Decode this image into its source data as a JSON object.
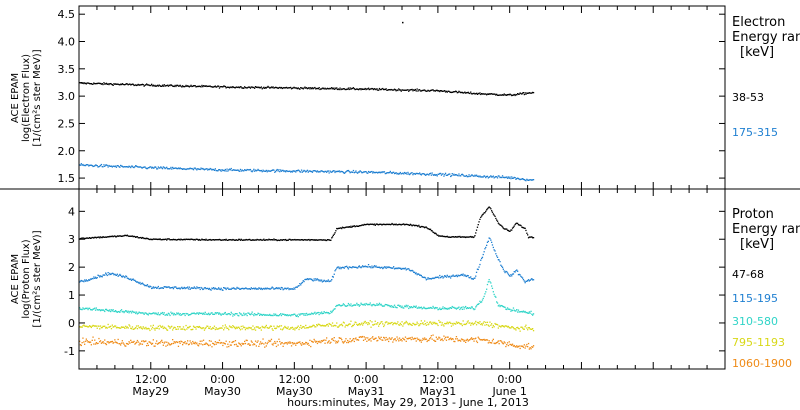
{
  "chart_data": {
    "type": "scatter",
    "x_axis": {
      "label": "hours:minutes, May 29, 2013 - June  1, 2013",
      "range_hours": [
        0,
        108
      ],
      "ticks": [
        {
          "hour": 12,
          "time": "12:00",
          "date": "May29"
        },
        {
          "hour": 24,
          "time": "0:00",
          "date": "May30"
        },
        {
          "hour": 36,
          "time": "12:00",
          "date": "May30"
        },
        {
          "hour": 48,
          "time": "0:00",
          "date": "May31"
        },
        {
          "hour": 60,
          "time": "12:00",
          "date": "May31"
        },
        {
          "hour": 72,
          "time": "0:00",
          "date": "June 1"
        }
      ]
    },
    "panels": [
      {
        "id": "electron",
        "ylabel_lines": [
          "ACE EPAM",
          "log(Electron Flux)",
          "[1/(cm²s ster MeV)]"
        ],
        "ylim": [
          1.3,
          4.65
        ],
        "yticks": [
          {
            "v": 1.5,
            "label": "1.5"
          },
          {
            "v": 2.0,
            "label": "2.0"
          },
          {
            "v": 2.5,
            "label": "2.5"
          },
          {
            "v": 3.0,
            "label": "3.0"
          },
          {
            "v": 3.5,
            "label": "3.5"
          },
          {
            "v": 4.0,
            "label": "4.0"
          },
          {
            "v": 4.5,
            "label": "4.5"
          }
        ],
        "legend_title_lines": [
          "Electron",
          "Energy ranges"
        ],
        "legend_unit": "[keV]",
        "series": [
          {
            "name": "38-53",
            "color": "#000000",
            "noise": 0.03,
            "points": [
              [
                0,
                3.25
              ],
              [
                12,
                3.21
              ],
              [
                24,
                3.18
              ],
              [
                36,
                3.16
              ],
              [
                48,
                3.14
              ],
              [
                60,
                3.11
              ],
              [
                66,
                3.06
              ],
              [
                72,
                3.03
              ],
              [
                76,
                3.08
              ]
            ]
          },
          {
            "name": "175-315",
            "color": "#1e7fd1",
            "noise": 0.04,
            "points": [
              [
                0,
                1.75
              ],
              [
                12,
                1.7
              ],
              [
                24,
                1.66
              ],
              [
                36,
                1.64
              ],
              [
                48,
                1.62
              ],
              [
                60,
                1.58
              ],
              [
                72,
                1.52
              ],
              [
                76,
                1.47
              ]
            ]
          }
        ],
        "outliers": [
          [
            54,
            4.36
          ]
        ]
      },
      {
        "id": "proton",
        "ylabel_lines": [
          "ACE EPAM",
          "log(Proton Flux)",
          "[1/(cm²s ster MeV)]"
        ],
        "ylim": [
          -1.65,
          4.8
        ],
        "yticks": [
          {
            "v": -1,
            "label": "-1"
          },
          {
            "v": 0,
            "label": "0"
          },
          {
            "v": 1,
            "label": "1"
          },
          {
            "v": 2,
            "label": "2"
          },
          {
            "v": 3,
            "label": "3"
          },
          {
            "v": 4,
            "label": "4"
          }
        ],
        "legend_title_lines": [
          "Proton",
          "Energy ranges"
        ],
        "legend_unit": "[keV]",
        "series": [
          {
            "name": "47-68",
            "color": "#000000",
            "noise": 0.04,
            "points": [
              [
                0,
                3.05
              ],
              [
                8,
                3.15
              ],
              [
                12,
                3.02
              ],
              [
                24,
                3.0
              ],
              [
                36,
                3.0
              ],
              [
                42,
                3.0
              ],
              [
                43,
                3.4
              ],
              [
                48,
                3.55
              ],
              [
                55,
                3.55
              ],
              [
                58,
                3.45
              ],
              [
                60,
                3.15
              ],
              [
                62,
                3.1
              ],
              [
                64,
                3.1
              ],
              [
                66,
                3.1
              ],
              [
                67,
                3.8
              ],
              [
                68.5,
                4.2
              ],
              [
                70,
                3.6
              ],
              [
                71,
                3.4
              ],
              [
                72,
                3.3
              ],
              [
                73,
                3.6
              ],
              [
                74.5,
                3.4
              ],
              [
                75,
                3.1
              ],
              [
                76,
                3.1
              ]
            ]
          },
          {
            "name": "115-195",
            "color": "#1e7fd1",
            "noise": 0.08,
            "points": [
              [
                0,
                1.5
              ],
              [
                5,
                1.8
              ],
              [
                8,
                1.65
              ],
              [
                12,
                1.3
              ],
              [
                24,
                1.25
              ],
              [
                36,
                1.25
              ],
              [
                38,
                1.6
              ],
              [
                42,
                1.5
              ],
              [
                43,
                2.0
              ],
              [
                48,
                2.05
              ],
              [
                55,
                1.95
              ],
              [
                58,
                1.6
              ],
              [
                62,
                1.7
              ],
              [
                64,
                1.75
              ],
              [
                66,
                1.6
              ],
              [
                67,
                2.2
              ],
              [
                68.5,
                3.1
              ],
              [
                70,
                2.3
              ],
              [
                71,
                1.9
              ],
              [
                72,
                1.7
              ],
              [
                73,
                1.9
              ],
              [
                74.5,
                1.5
              ],
              [
                76,
                1.6
              ]
            ]
          },
          {
            "name": "310-580",
            "color": "#2fd4c7",
            "noise": 0.1,
            "points": [
              [
                0,
                0.55
              ],
              [
                12,
                0.35
              ],
              [
                24,
                0.35
              ],
              [
                36,
                0.3
              ],
              [
                42,
                0.4
              ],
              [
                43,
                0.65
              ],
              [
                48,
                0.7
              ],
              [
                58,
                0.55
              ],
              [
                66,
                0.55
              ],
              [
                67.5,
                0.9
              ],
              [
                68.5,
                1.6
              ],
              [
                70,
                0.65
              ],
              [
                72,
                0.5
              ],
              [
                76,
                0.35
              ]
            ]
          },
          {
            "name": "795-1193",
            "color": "#d8d817",
            "noise": 0.15,
            "points": [
              [
                0,
                -0.1
              ],
              [
                12,
                -0.15
              ],
              [
                24,
                -0.15
              ],
              [
                36,
                -0.15
              ],
              [
                42,
                -0.05
              ],
              [
                48,
                0.0
              ],
              [
                60,
                0.0
              ],
              [
                68,
                0.0
              ],
              [
                72,
                -0.15
              ],
              [
                76,
                -0.2
              ]
            ]
          },
          {
            "name": "1060-1900",
            "color": "#ef8a16",
            "noise": 0.2,
            "points": [
              [
                0,
                -0.65
              ],
              [
                12,
                -0.7
              ],
              [
                24,
                -0.7
              ],
              [
                36,
                -0.72
              ],
              [
                42,
                -0.6
              ],
              [
                48,
                -0.55
              ],
              [
                60,
                -0.55
              ],
              [
                68,
                -0.6
              ],
              [
                72,
                -0.75
              ],
              [
                76,
                -0.85
              ]
            ]
          }
        ]
      }
    ]
  }
}
